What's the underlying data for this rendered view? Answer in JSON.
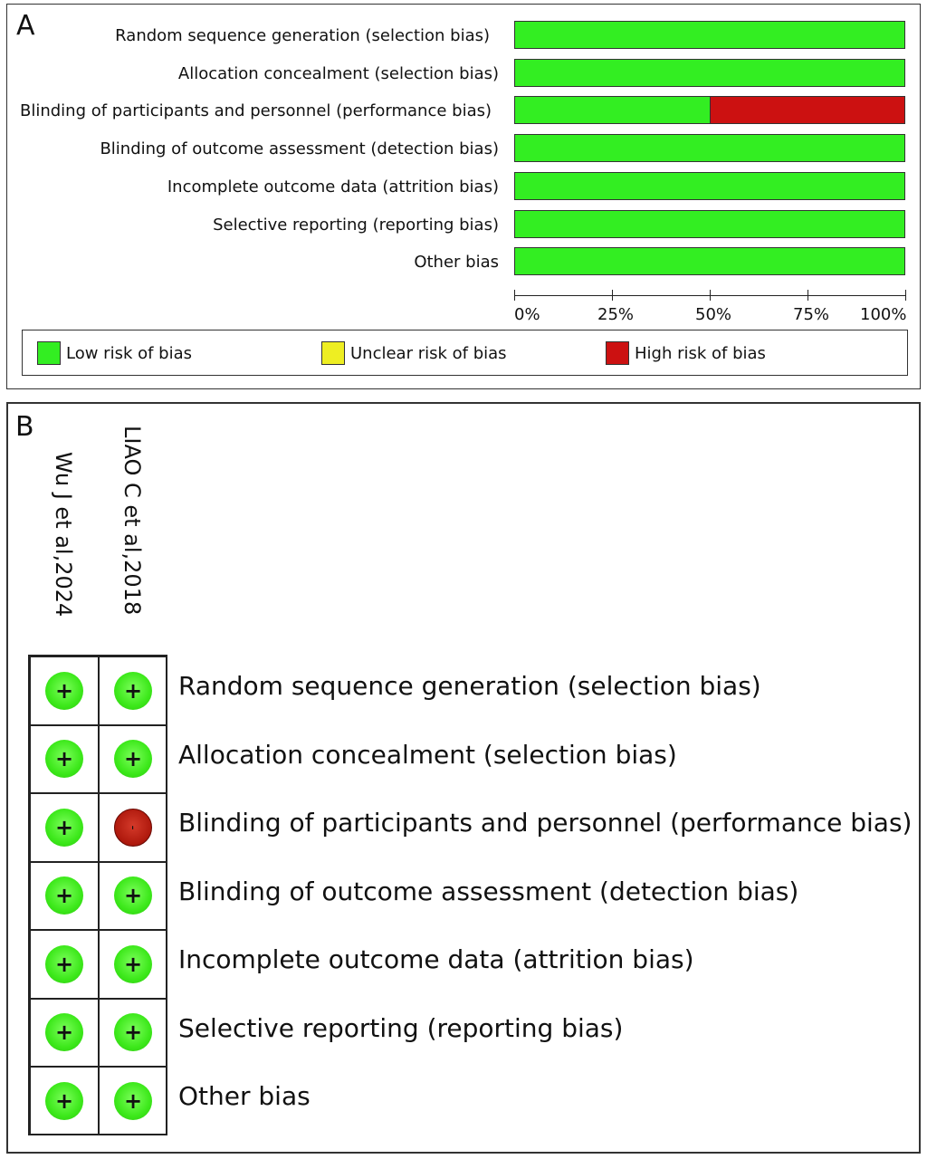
{
  "panel_a": {
    "letter": "A"
  },
  "panel_b": {
    "letter": "B"
  },
  "colors": {
    "low": "#33ee22",
    "unclear": "#eeee22",
    "high": "#cc1111"
  },
  "chart_data": [
    {
      "type": "bar",
      "orientation": "horizontal-stacked",
      "categories": [
        "Random sequence generation (selection bias)",
        "Allocation concealment (selection bias)",
        "Blinding of participants and personnel (performance bias)",
        "Blinding of outcome assessment (detection bias)",
        "Incomplete outcome data (attrition bias)",
        "Selective reporting (reporting bias)",
        "Other bias"
      ],
      "series": [
        {
          "name": "Low risk of bias",
          "values": [
            100,
            100,
            50,
            100,
            100,
            100,
            100
          ]
        },
        {
          "name": "Unclear risk of bias",
          "values": [
            0,
            0,
            0,
            0,
            0,
            0,
            0
          ]
        },
        {
          "name": "High risk of bias",
          "values": [
            0,
            0,
            50,
            0,
            0,
            0,
            0
          ]
        }
      ],
      "xlim": [
        0,
        100
      ],
      "x_ticks": [
        "0%",
        "25%",
        "50%",
        "75%",
        "100%"
      ],
      "legend": "bottom"
    },
    {
      "type": "table",
      "studies": [
        "Wu J et al,2024",
        "LIAO C et al,2018"
      ],
      "domains": [
        "Random sequence generation (selection bias)",
        "Allocation concealment (selection bias)",
        "Blinding of participants and personnel (performance bias)",
        "Blinding of outcome assessment (detection bias)",
        "Incomplete outcome data (attrition bias)",
        "Selective reporting (reporting bias)",
        "Other bias"
      ],
      "judgements": [
        [
          "low",
          "low"
        ],
        [
          "low",
          "low"
        ],
        [
          "low",
          "high"
        ],
        [
          "low",
          "low"
        ],
        [
          "low",
          "low"
        ],
        [
          "low",
          "low"
        ],
        [
          "low",
          "low"
        ]
      ],
      "symbols": {
        "low": "+",
        "high": "-"
      }
    }
  ]
}
